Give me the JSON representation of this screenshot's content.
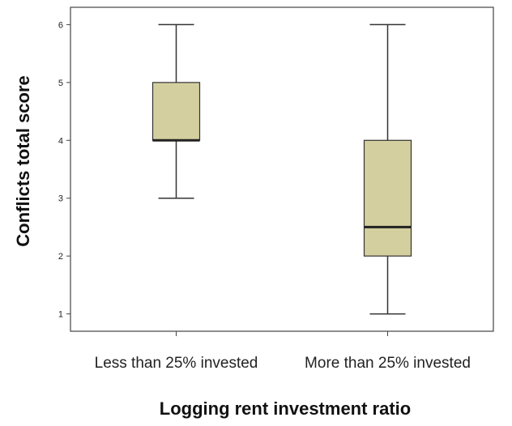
{
  "chart_data": {
    "type": "boxplot",
    "title": "",
    "xlabel": "Logging rent investment ratio",
    "ylabel": "Conflicts total score",
    "ylim": [
      0.7,
      6.3
    ],
    "yticks": [
      1,
      2,
      3,
      4,
      5,
      6
    ],
    "grid": false,
    "box_color": "#d4cf9f",
    "categories": [
      "Less than 25% invested",
      "More than 25% invested"
    ],
    "boxes": [
      {
        "category": "Less than 25% invested",
        "min": 3,
        "q1": 4,
        "median": 4,
        "q3": 5,
        "max": 6
      },
      {
        "category": "More than 25% invested",
        "min": 1,
        "q1": 2,
        "median": 2.5,
        "q3": 4,
        "max": 6
      }
    ]
  }
}
